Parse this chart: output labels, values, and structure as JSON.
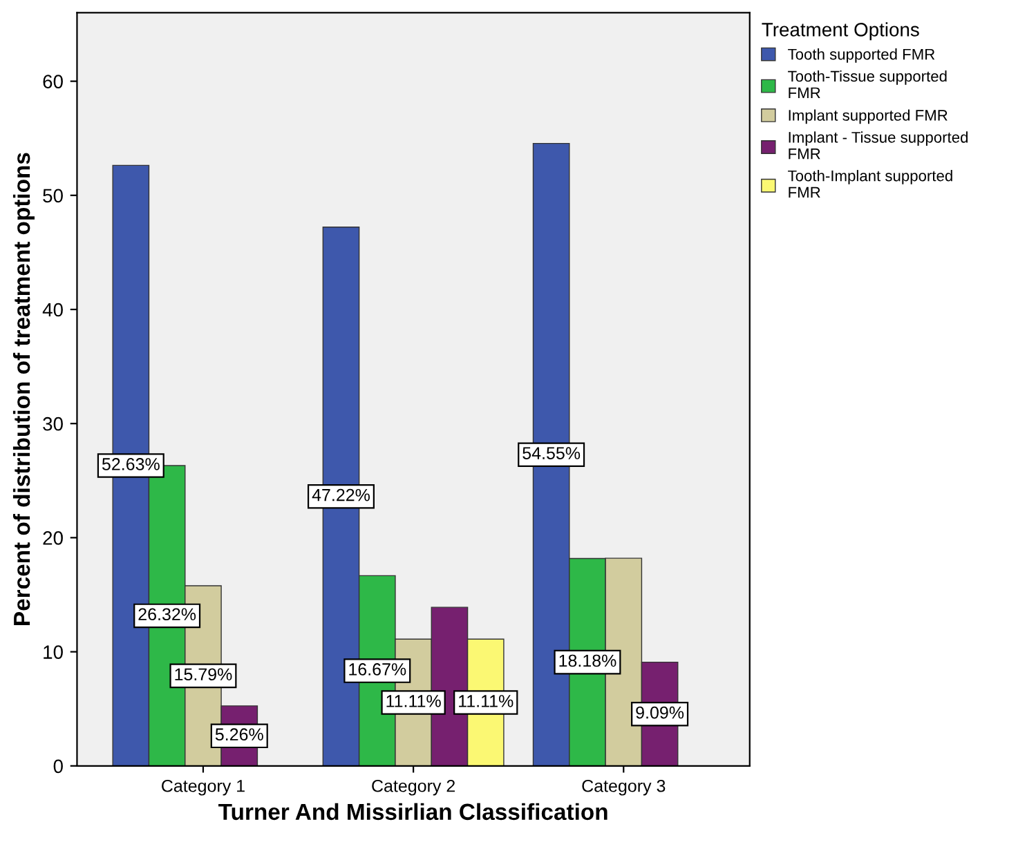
{
  "chart_data": {
    "type": "bar",
    "xlabel": "Turner And Missirlian Classification",
    "ylabel": "Percent of distribution of treatment options",
    "legend_title": "Treatment Options",
    "legend": "top right",
    "categories": [
      "Category 1",
      "Category 2",
      "Category 3"
    ],
    "ylim": [
      0,
      66
    ],
    "yticks": [
      0,
      10,
      20,
      30,
      40,
      50,
      60
    ],
    "grid": false,
    "series": [
      {
        "name": "Tooth supported FMR",
        "color": "#3e58ac",
        "values": [
          52.63,
          47.22,
          54.55
        ],
        "value_labels": [
          "52.63%",
          "47.22%",
          "54.55%"
        ]
      },
      {
        "name": "Tooth-Tissue supported\nFMR",
        "color": "#2eb848",
        "values": [
          26.32,
          16.67,
          18.18
        ],
        "value_labels": [
          "26.32%",
          "16.67%",
          "18.18%"
        ]
      },
      {
        "name": "Implant supported FMR",
        "color": "#d2cc9e",
        "values": [
          15.79,
          11.11,
          18.2
        ],
        "value_labels": [
          "15.79%",
          "11.11%",
          null
        ]
      },
      {
        "name": "Implant - Tissue supported\nFMR",
        "color": "#76206f",
        "values": [
          5.26,
          13.9,
          9.09
        ],
        "value_labels": [
          "5.26%",
          null,
          "9.09%"
        ]
      },
      {
        "name": "Tooth-Implant supported\nFMR",
        "color": "#fbf873",
        "values": [
          null,
          11.11,
          null
        ],
        "value_labels": [
          null,
          "11.11%",
          null
        ]
      }
    ]
  }
}
